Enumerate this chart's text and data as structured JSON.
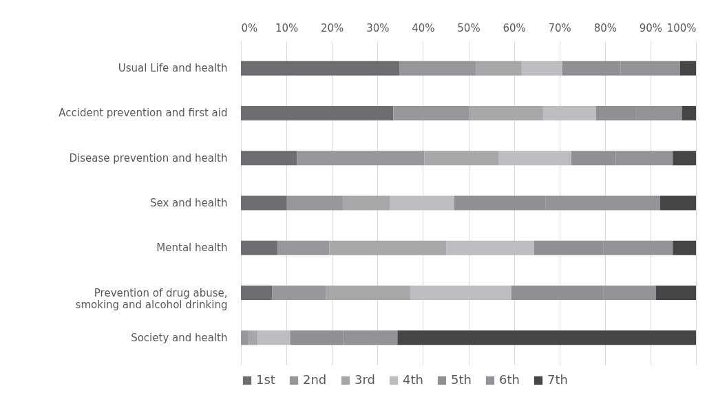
{
  "chart_data": {
    "type": "bar",
    "orientation": "horizontal",
    "stacked": true,
    "categories": [
      "Usual Life and health",
      "Accident prevention and first aid",
      "Disease prevention and health",
      "Sex and health",
      "Mental health",
      "Prevention of drug abuse,\nsmoking and alcohol drinking",
      "Society and health"
    ],
    "series": [
      {
        "name": "1st",
        "color": "#6d6e71",
        "values": [
          34.9,
          33.5,
          12.3,
          10.1,
          8.0,
          6.9,
          0
        ]
      },
      {
        "name": "2nd",
        "color": "#96979a",
        "values": [
          16.8,
          16.8,
          28.0,
          12.3,
          11.4,
          11.8,
          1.7
        ]
      },
      {
        "name": "3rd",
        "color": "#a6a7a9",
        "values": [
          10.0,
          16.1,
          16.4,
          10.4,
          25.7,
          18.5,
          2.0
        ]
      },
      {
        "name": "4th",
        "color": "#bcbdc0",
        "values": [
          8.9,
          11.6,
          15.9,
          14.1,
          19.3,
          22.2,
          7.1
        ]
      },
      {
        "name": "5th",
        "color": "#8f9093",
        "values": [
          12.8,
          8.7,
          9.8,
          20.0,
          15.2,
          20.3,
          11.8
        ]
      },
      {
        "name": "6th",
        "color": "#929396",
        "values": [
          13.1,
          10.2,
          12.5,
          25.2,
          15.3,
          11.5,
          11.8
        ]
      },
      {
        "name": "7th",
        "color": "#454648",
        "values": [
          3.5,
          3.1,
          5.1,
          7.9,
          5.1,
          8.8,
          65.6
        ]
      }
    ],
    "xlim": [
      0,
      100
    ],
    "xticks": [
      {
        "value": 0,
        "label": "0%"
      },
      {
        "value": 10,
        "label": "10%"
      },
      {
        "value": 20,
        "label": "20%"
      },
      {
        "value": 30,
        "label": "30%"
      },
      {
        "value": 40,
        "label": "40%"
      },
      {
        "value": 50,
        "label": "50%"
      },
      {
        "value": 60,
        "label": "60%"
      },
      {
        "value": 70,
        "label": "70%"
      },
      {
        "value": 80,
        "label": "80%"
      },
      {
        "value": 90,
        "label": "90%"
      },
      {
        "value": 100,
        "label": "100%"
      }
    ],
    "grid": "x",
    "legend": "bottom"
  }
}
